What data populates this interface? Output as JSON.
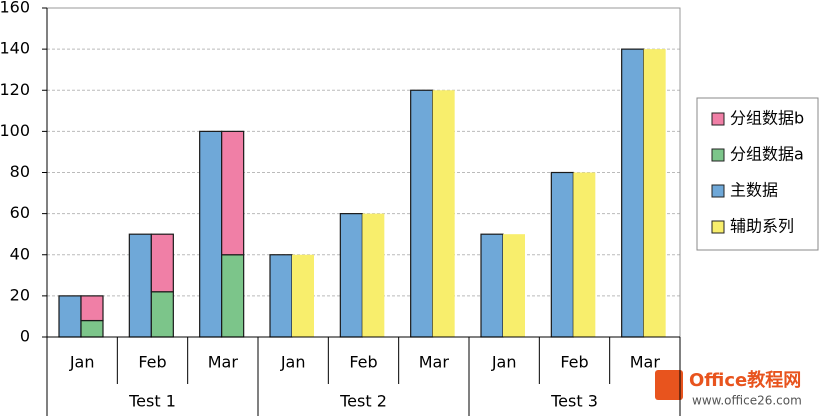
{
  "chart_data": {
    "type": "bar",
    "groups": [
      {
        "name": "Test 1",
        "categories": [
          "Jan",
          "Feb",
          "Mar"
        ]
      },
      {
        "name": "Test 2",
        "categories": [
          "Jan",
          "Feb",
          "Mar"
        ]
      },
      {
        "name": "Test 3",
        "categories": [
          "Jan",
          "Feb",
          "Mar"
        ]
      }
    ],
    "series": [
      {
        "name": "分组数据b",
        "color": "#f07fa6",
        "values": [
          12,
          28,
          60,
          null,
          null,
          null,
          null,
          null,
          null
        ]
      },
      {
        "name": "分组数据a",
        "color": "#7cc58a",
        "values": [
          8,
          22,
          40,
          null,
          null,
          null,
          null,
          null,
          null
        ]
      },
      {
        "name": "主数据",
        "color": "#6fa8d8",
        "values": [
          20,
          50,
          100,
          40,
          60,
          120,
          50,
          80,
          140
        ]
      },
      {
        "name": "辅助系列",
        "color": "#f8ee6c",
        "values": [
          null,
          null,
          null,
          40,
          60,
          120,
          50,
          80,
          140
        ]
      }
    ],
    "ylim": [
      0,
      160
    ],
    "yticks": [
      0,
      20,
      40,
      60,
      80,
      100,
      120,
      140,
      160
    ],
    "grid": true,
    "watermark": {
      "title": "Office教程网",
      "url": "www.office26.com"
    }
  }
}
